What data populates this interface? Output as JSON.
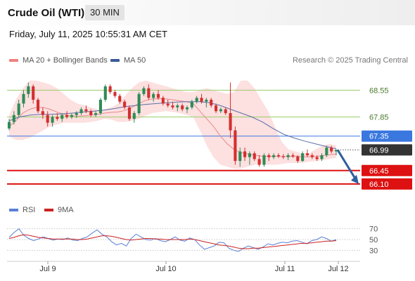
{
  "header": {
    "title": "Crude Oil (WTI)",
    "timeframe": "30 MIN"
  },
  "datetime": "Friday, July 11, 2025 10:55:31 AM CET",
  "legend": [
    {
      "label": "MA 20 + Bollinger Bands",
      "color": "#f08080"
    },
    {
      "label": "MA 50",
      "color": "#3a5a98"
    }
  ],
  "credit": "Research © 2025 Trading Central",
  "colors": {
    "bull": "#2e8b57",
    "bear": "#d32f2f",
    "band": "#fde0e0",
    "ma20": "#e88a8a",
    "ma50": "#5a6ea8",
    "level_green": "#9acd6a",
    "pivot": "#3a78e0",
    "support": "#dd1111",
    "price": "#333333",
    "arrow": "#2f5f9e",
    "rsi": "#5a7fd6",
    "rsi_ma": "#cc2222"
  },
  "chart_data": {
    "type": "line",
    "ylim": [
      65.95,
      68.85
    ],
    "x_ticks": [
      "Jul 9",
      "Jul 10",
      "Jul 11",
      "Jul 12"
    ],
    "candles": [
      [
        67.55,
        67.8,
        67.5,
        67.72
      ],
      [
        67.72,
        68.0,
        67.65,
        67.9
      ],
      [
        67.9,
        68.3,
        67.85,
        68.2
      ],
      [
        68.2,
        68.55,
        68.1,
        68.45
      ],
      [
        68.45,
        68.75,
        68.35,
        68.65
      ],
      [
        68.65,
        68.7,
        68.2,
        68.3
      ],
      [
        68.3,
        68.35,
        67.95,
        68.0
      ],
      [
        68.0,
        68.1,
        67.8,
        67.9
      ],
      [
        67.9,
        68.0,
        67.6,
        67.7
      ],
      [
        67.7,
        67.9,
        67.6,
        67.85
      ],
      [
        67.85,
        67.95,
        67.75,
        67.8
      ],
      [
        67.8,
        67.95,
        67.72,
        67.9
      ],
      [
        67.9,
        68.0,
        67.8,
        67.85
      ],
      [
        67.85,
        67.95,
        67.8,
        67.9
      ],
      [
        67.9,
        68.0,
        67.82,
        67.95
      ],
      [
        67.95,
        68.1,
        67.9,
        68.05
      ],
      [
        68.05,
        68.15,
        67.95,
        68.0
      ],
      [
        68.0,
        68.05,
        67.85,
        67.9
      ],
      [
        67.9,
        68.0,
        67.85,
        67.95
      ],
      [
        67.95,
        68.35,
        67.9,
        68.3
      ],
      [
        68.3,
        68.7,
        68.25,
        68.65
      ],
      [
        68.65,
        68.7,
        68.45,
        68.5
      ],
      [
        68.5,
        68.55,
        68.35,
        68.4
      ],
      [
        68.4,
        68.45,
        68.2,
        68.25
      ],
      [
        68.25,
        68.3,
        68.05,
        68.1
      ],
      [
        68.1,
        68.15,
        67.75,
        67.8
      ],
      [
        67.8,
        68.0,
        67.7,
        67.95
      ],
      [
        67.95,
        68.5,
        67.9,
        68.45
      ],
      [
        68.45,
        68.65,
        68.4,
        68.6
      ],
      [
        68.6,
        68.7,
        68.3,
        68.35
      ],
      [
        68.35,
        68.5,
        68.25,
        68.45
      ],
      [
        68.45,
        68.55,
        68.3,
        68.35
      ],
      [
        68.35,
        68.4,
        68.15,
        68.2
      ],
      [
        68.2,
        68.3,
        68.1,
        68.15
      ],
      [
        68.15,
        68.25,
        68.05,
        68.1
      ],
      [
        68.1,
        68.2,
        68.0,
        68.15
      ],
      [
        68.15,
        68.2,
        68.0,
        68.05
      ],
      [
        68.05,
        68.15,
        67.95,
        68.1
      ],
      [
        68.1,
        68.3,
        68.05,
        68.25
      ],
      [
        68.25,
        68.4,
        68.2,
        68.35
      ],
      [
        68.35,
        68.45,
        68.2,
        68.25
      ],
      [
        68.25,
        68.35,
        68.1,
        68.3
      ],
      [
        68.3,
        68.35,
        68.1,
        68.15
      ],
      [
        68.15,
        68.2,
        67.95,
        68.0
      ],
      [
        68.0,
        68.1,
        67.95,
        68.05
      ],
      [
        68.05,
        68.1,
        67.9,
        67.95
      ],
      [
        67.95,
        68.75,
        67.3,
        67.5
      ],
      [
        67.5,
        67.6,
        66.6,
        66.7
      ],
      [
        66.7,
        67.05,
        66.55,
        66.95
      ],
      [
        66.95,
        67.05,
        66.7,
        66.8
      ],
      [
        66.8,
        66.95,
        66.6,
        66.9
      ],
      [
        66.9,
        66.95,
        66.7,
        66.75
      ],
      [
        66.75,
        66.85,
        66.55,
        66.6
      ],
      [
        66.6,
        66.9,
        66.55,
        66.85
      ],
      [
        66.85,
        66.9,
        66.7,
        66.8
      ],
      [
        66.8,
        66.9,
        66.75,
        66.85
      ],
      [
        66.85,
        66.9,
        66.78,
        66.82
      ],
      [
        66.82,
        66.88,
        66.75,
        66.8
      ],
      [
        66.8,
        66.9,
        66.72,
        66.85
      ],
      [
        66.85,
        66.9,
        66.78,
        66.82
      ],
      [
        66.82,
        66.85,
        66.65,
        66.7
      ],
      [
        66.7,
        66.95,
        66.68,
        66.9
      ],
      [
        66.9,
        67.0,
        66.8,
        66.85
      ],
      [
        66.85,
        66.9,
        66.75,
        66.8
      ],
      [
        66.8,
        66.85,
        66.7,
        66.75
      ],
      [
        66.75,
        66.9,
        66.7,
        66.85
      ],
      [
        66.85,
        67.1,
        66.8,
        67.05
      ],
      [
        67.05,
        67.1,
        66.9,
        66.95
      ],
      [
        66.95,
        67.0,
        66.85,
        66.99
      ]
    ],
    "bollinger": {
      "upper": [
        67.9,
        68.3,
        68.6,
        68.8,
        68.8,
        68.75,
        68.7,
        68.6,
        68.45,
        68.3,
        68.2,
        68.15,
        68.1,
        68.05,
        68.05,
        68.1,
        68.2,
        68.4,
        68.6,
        68.75,
        68.8,
        68.75,
        68.7,
        68.65,
        68.6,
        68.55,
        68.5,
        68.5,
        68.55,
        68.6,
        68.55,
        68.5,
        68.45,
        68.5,
        68.8,
        68.8,
        68.6,
        68.3,
        68.0,
        67.6,
        67.2,
        67.0,
        66.95,
        66.9,
        66.9,
        67.0,
        67.1,
        67.15,
        67.1
      ],
      "lower": [
        67.35,
        67.25,
        67.25,
        67.3,
        67.4,
        67.5,
        67.6,
        67.65,
        67.7,
        67.7,
        67.7,
        67.7,
        67.72,
        67.75,
        67.8,
        67.78,
        67.72,
        67.72,
        67.75,
        67.8,
        67.88,
        67.95,
        67.98,
        68.0,
        67.98,
        67.95,
        67.9,
        67.85,
        67.5,
        67.1,
        66.8,
        66.6,
        66.55,
        66.5,
        66.5,
        66.55,
        66.6,
        66.62,
        66.6,
        66.6,
        66.62,
        66.65,
        66.65,
        66.65,
        66.68,
        66.7,
        66.72,
        66.75,
        66.78
      ],
      "ma20": [
        67.6,
        67.75,
        67.95,
        68.05,
        68.1,
        68.1,
        68.05,
        67.98,
        67.92,
        67.88,
        67.87,
        67.88,
        67.9,
        67.92,
        67.95,
        67.97,
        67.98,
        68.02,
        68.1,
        68.2,
        68.28,
        68.32,
        68.33,
        68.32,
        68.3,
        68.27,
        68.25,
        68.2,
        68.0,
        67.8,
        67.6,
        67.35,
        67.15,
        67.0,
        66.92,
        66.88,
        66.85,
        66.83,
        66.82,
        66.82,
        66.82,
        66.82,
        66.82,
        66.81,
        66.81,
        66.82,
        66.84,
        66.86,
        66.88
      ],
      "ma50": [
        67.75,
        67.85,
        67.9,
        67.92,
        67.92,
        67.93,
        67.95,
        67.98,
        68.0,
        68.03,
        68.07,
        68.12,
        68.15,
        68.18,
        68.2,
        68.22,
        68.24,
        68.25,
        68.25,
        68.22,
        68.15,
        68.05,
        67.95,
        67.85,
        67.72,
        67.55,
        67.4,
        67.3,
        67.22,
        67.15,
        67.08,
        67.02
      ]
    },
    "levels": [
      {
        "value": 68.55,
        "label": "68.55",
        "kind": "resistance"
      },
      {
        "value": 67.85,
        "label": "67.85",
        "kind": "resistance"
      },
      {
        "value": 67.35,
        "label": "67.35",
        "kind": "pivot"
      },
      {
        "value": 66.99,
        "label": "66.99",
        "kind": "last"
      },
      {
        "value": 66.45,
        "label": "66.45",
        "kind": "support"
      },
      {
        "value": 66.1,
        "label": "66.10",
        "kind": "support"
      }
    ],
    "forecast": {
      "from": 66.99,
      "to": 66.1
    },
    "rsi": {
      "legend": [
        "RSI",
        "9MA"
      ],
      "ylim": [
        20,
        80
      ],
      "ticks": [
        "70",
        "50",
        "30"
      ],
      "rsi": [
        54,
        63,
        70,
        58,
        52,
        48,
        51,
        55,
        52,
        49,
        51,
        50,
        53,
        49,
        48,
        52,
        55,
        62,
        68,
        60,
        55,
        46,
        40,
        43,
        38,
        52,
        60,
        55,
        50,
        49,
        52,
        48,
        46,
        50,
        55,
        49,
        47,
        53,
        50,
        40,
        32,
        35,
        38,
        45,
        44,
        34,
        30,
        28,
        34,
        38,
        35,
        32,
        36,
        42,
        40,
        43,
        45,
        44,
        47,
        48,
        45,
        42,
        48,
        50,
        55,
        52,
        47,
        50
      ],
      "ma": [
        52,
        54,
        57,
        59,
        58,
        56,
        54,
        53,
        52,
        51,
        51,
        51,
        51,
        51,
        50,
        50,
        51,
        53,
        55,
        57,
        57,
        56,
        54,
        52,
        50,
        49,
        50,
        51,
        52,
        52,
        51,
        51,
        50,
        50,
        50,
        50,
        50,
        51,
        50,
        48,
        46,
        44,
        42,
        40,
        39,
        38,
        36,
        34,
        33,
        33,
        34,
        34,
        35,
        36,
        37,
        38,
        39,
        40,
        41,
        42,
        43,
        43,
        44,
        45,
        46,
        47,
        47,
        48
      ]
    }
  }
}
